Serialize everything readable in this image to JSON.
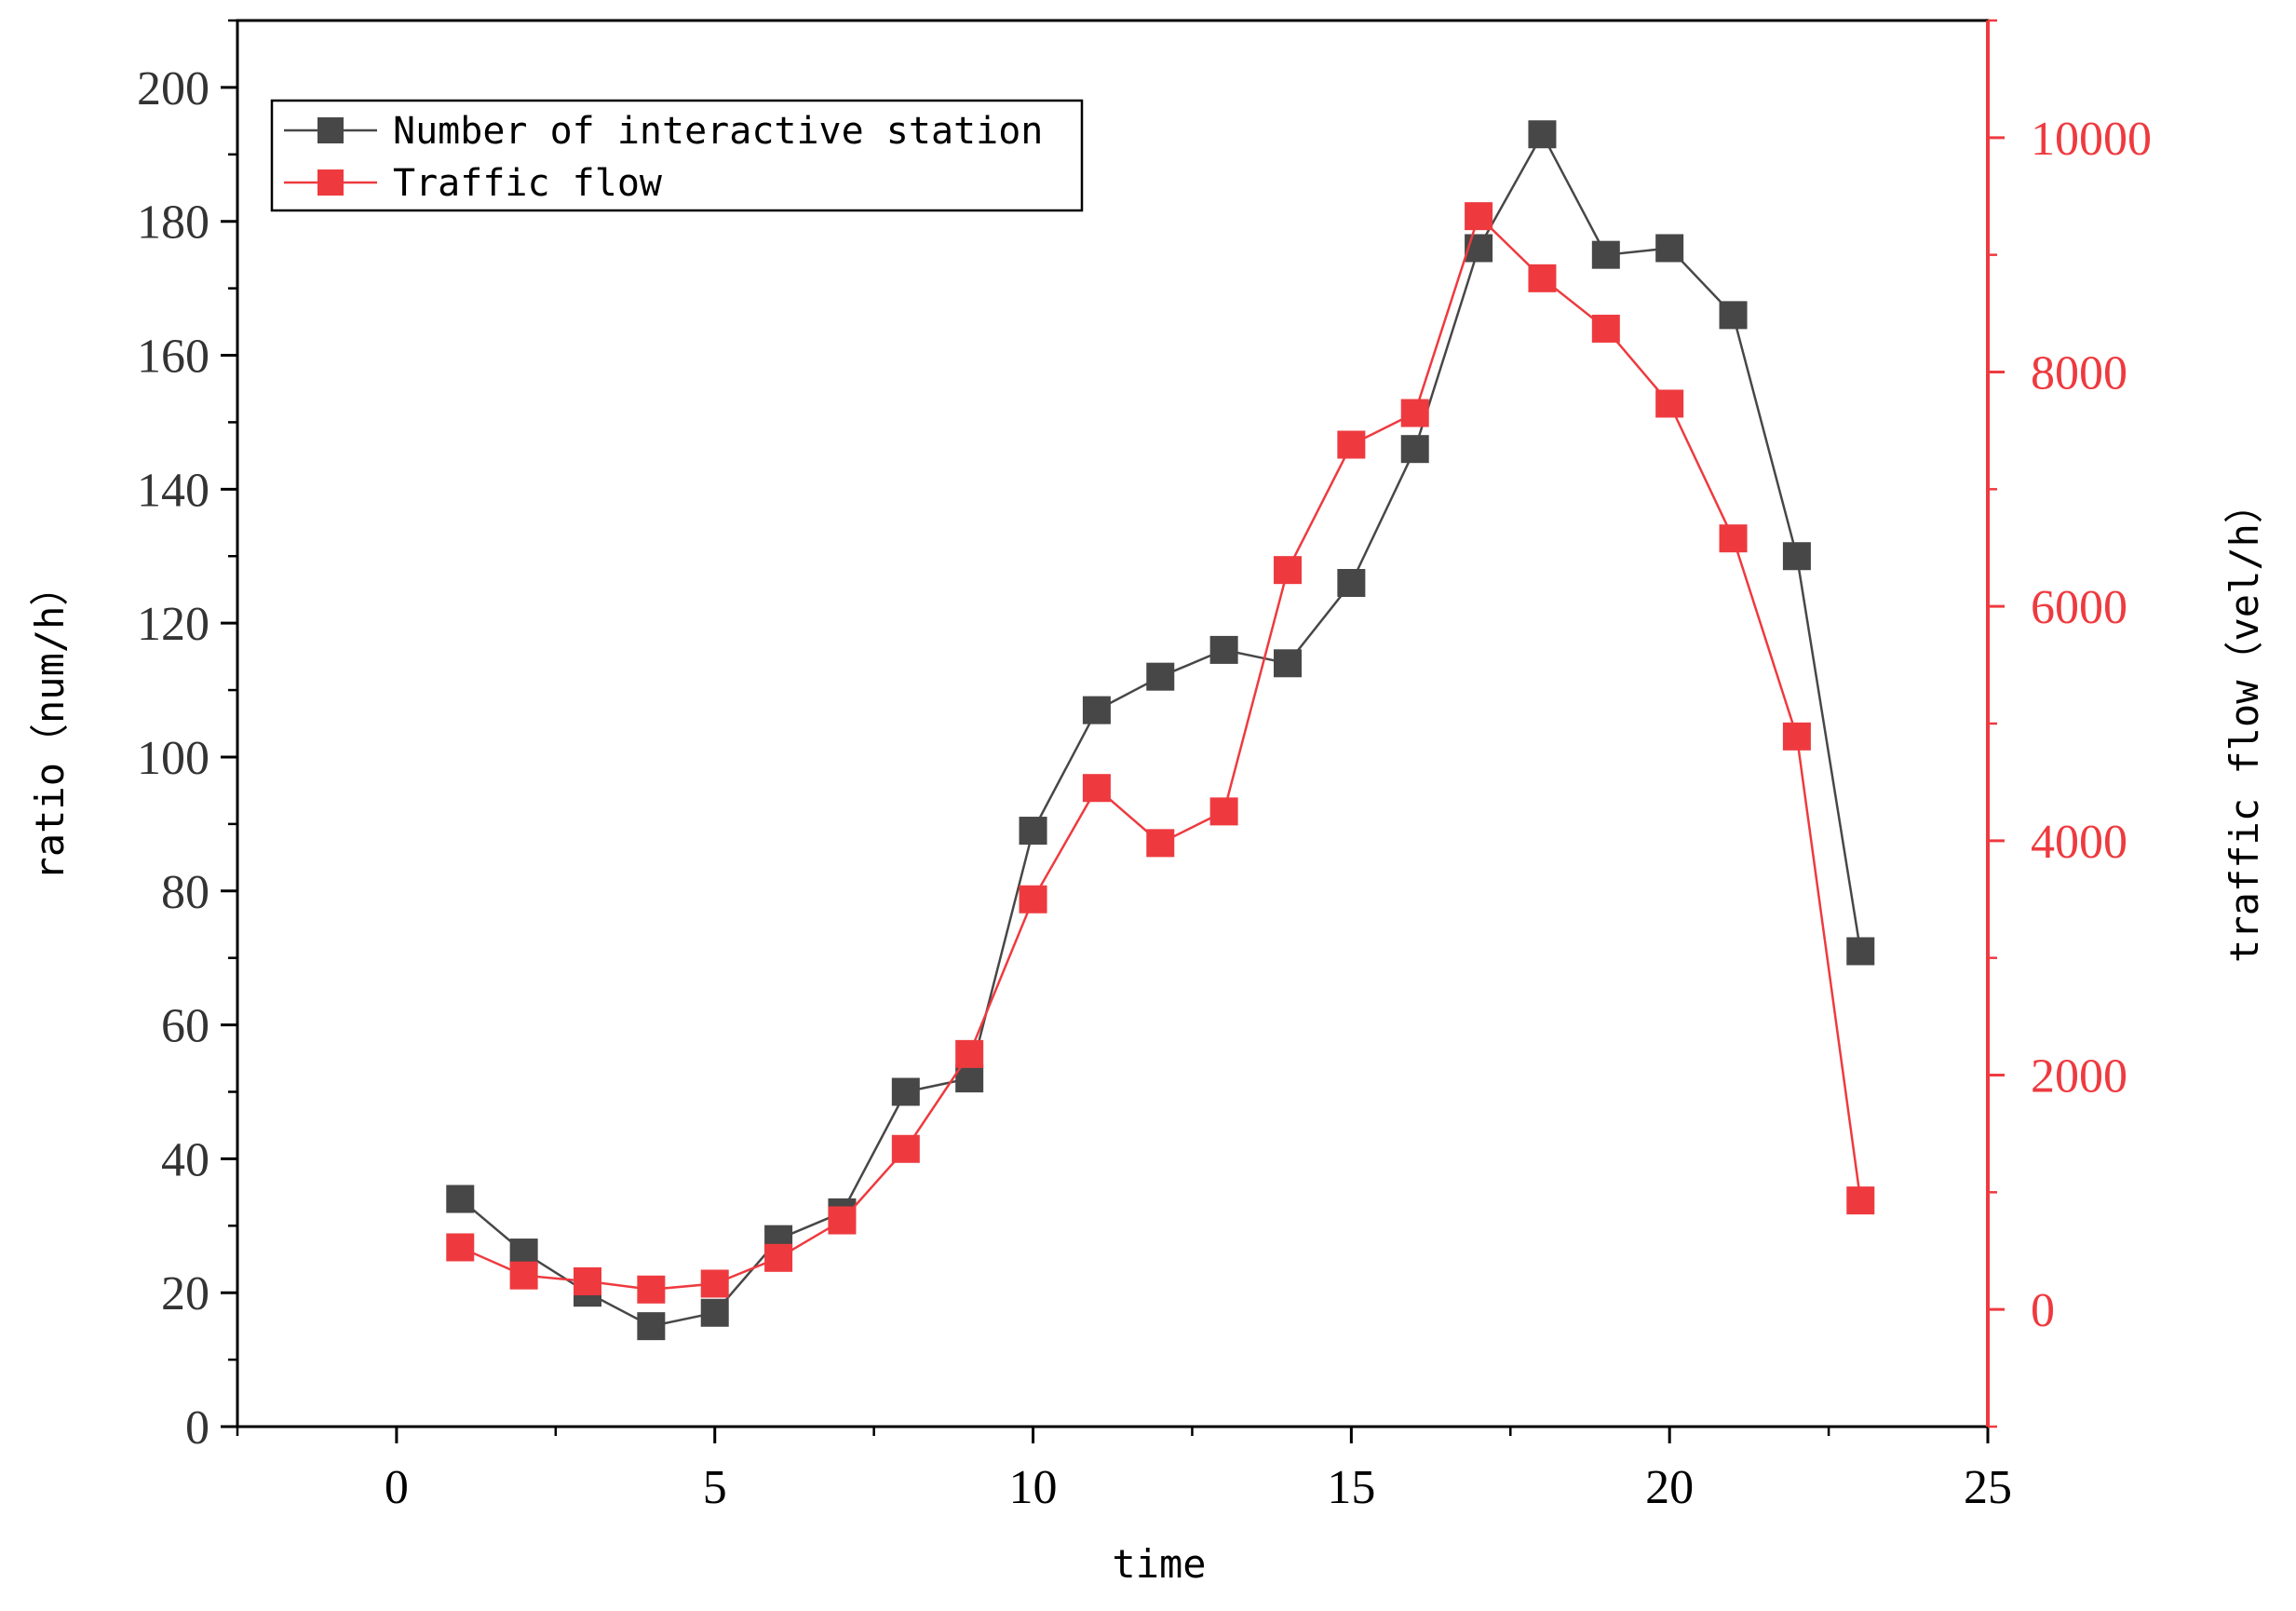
{
  "chart_data": {
    "type": "line",
    "xlabel": "time",
    "ylabel": "ratio（num/h）",
    "y2label": "traffic flow（vel/h）",
    "xlim": [
      -2.5,
      25
    ],
    "ylim": [
      0,
      210
    ],
    "y2lim": [
      -1000,
      11000
    ],
    "xticks": [
      0,
      5,
      10,
      15,
      20,
      25
    ],
    "yticks": [
      0,
      20,
      40,
      60,
      80,
      100,
      120,
      140,
      160,
      180,
      200
    ],
    "y2ticks": [
      0,
      2000,
      4000,
      6000,
      8000,
      10000
    ],
    "legend_position": "top-left",
    "grid": false,
    "x": [
      1,
      2,
      3,
      4,
      5,
      6,
      7,
      8,
      9,
      10,
      11,
      12,
      13,
      14,
      15,
      16,
      17,
      18,
      19,
      20,
      21,
      22,
      23
    ],
    "series": [
      {
        "name": "Number of interactive station",
        "axis": "left",
        "color": "#474747",
        "values": [
          34,
          26,
          20,
          15,
          17,
          28,
          32,
          50,
          52,
          89,
          107,
          112,
          116,
          114,
          126,
          146,
          176,
          193,
          175,
          176,
          166,
          130,
          71
        ]
      },
      {
        "name": "Traffic flow",
        "axis": "right",
        "color": "#ee3a3f",
        "values": [
          530,
          290,
          240,
          170,
          220,
          440,
          760,
          1370,
          2180,
          3500,
          4450,
          3980,
          4250,
          6310,
          7380,
          7650,
          9330,
          8800,
          8370,
          7730,
          6580,
          4890,
          930
        ]
      }
    ]
  }
}
